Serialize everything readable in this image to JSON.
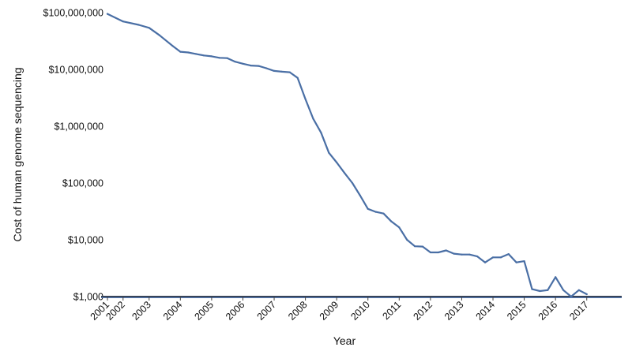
{
  "chart_data": {
    "type": "line",
    "xlabel": "Year",
    "ylabel": "Cost of human genome sequencing",
    "y_scale": "log",
    "xlim": [
      "2001-09",
      "2017-12"
    ],
    "ylim": [
      1000,
      100000000
    ],
    "x_ticks": [
      {
        "date": "2001-09",
        "label": "2001"
      },
      {
        "date": "2002-03",
        "label": "2002"
      },
      {
        "date": "2003-01",
        "label": "2003"
      },
      {
        "date": "2004-01",
        "label": "2004"
      },
      {
        "date": "2005-01",
        "label": "2005"
      },
      {
        "date": "2006-01",
        "label": "2006"
      },
      {
        "date": "2007-01",
        "label": "2007"
      },
      {
        "date": "2008-01",
        "label": "2008"
      },
      {
        "date": "2009-01",
        "label": "2009"
      },
      {
        "date": "2010-01",
        "label": "2010"
      },
      {
        "date": "2011-01",
        "label": "2011"
      },
      {
        "date": "2012-01",
        "label": "2012"
      },
      {
        "date": "2013-01",
        "label": "2013"
      },
      {
        "date": "2014-01",
        "label": "2014"
      },
      {
        "date": "2015-01",
        "label": "2015"
      },
      {
        "date": "2016-01",
        "label": "2016"
      },
      {
        "date": "2017-01",
        "label": "2017"
      }
    ],
    "y_ticks": [
      {
        "value": 100000000,
        "label": "$100,000,000"
      },
      {
        "value": 10000000,
        "label": "$10,000,000"
      },
      {
        "value": 1000000,
        "label": "$1,000,000"
      },
      {
        "value": 100000,
        "label": "$100,000"
      },
      {
        "value": 10000,
        "label": "$10,000"
      },
      {
        "value": 1000,
        "label": "$1,000"
      }
    ],
    "series": [
      {
        "color": "#4a6fa5",
        "points": [
          [
            "2001-09",
            95000000
          ],
          [
            "2002-03",
            70000000
          ],
          [
            "2002-09",
            61000000
          ],
          [
            "2003-01",
            54000000
          ],
          [
            "2003-05",
            40000000
          ],
          [
            "2003-10",
            26000000
          ],
          [
            "2004-01",
            20500000
          ],
          [
            "2004-04",
            19900000
          ],
          [
            "2004-07",
            18700000
          ],
          [
            "2004-10",
            17600000
          ],
          [
            "2005-01",
            17000000
          ],
          [
            "2005-04",
            16000000
          ],
          [
            "2005-07",
            15800000
          ],
          [
            "2005-10",
            13700000
          ],
          [
            "2006-01",
            12600000
          ],
          [
            "2006-04",
            11700000
          ],
          [
            "2006-07",
            11500000
          ],
          [
            "2006-10",
            10500000
          ],
          [
            "2007-01",
            9400000
          ],
          [
            "2007-04",
            9100000
          ],
          [
            "2007-07",
            8900000
          ],
          [
            "2007-10",
            7100000
          ],
          [
            "2008-01",
            3000000
          ],
          [
            "2008-04",
            1350000
          ],
          [
            "2008-07",
            770000
          ],
          [
            "2008-10",
            340000
          ],
          [
            "2009-01",
            230000
          ],
          [
            "2009-04",
            150000
          ],
          [
            "2009-07",
            100000
          ],
          [
            "2009-10",
            60000
          ],
          [
            "2010-01",
            35000
          ],
          [
            "2010-04",
            31000
          ],
          [
            "2010-07",
            29000
          ],
          [
            "2010-10",
            21000
          ],
          [
            "2011-01",
            16500
          ],
          [
            "2011-04",
            10000
          ],
          [
            "2011-07",
            7700
          ],
          [
            "2011-10",
            7600
          ],
          [
            "2012-01",
            6000
          ],
          [
            "2012-04",
            6000
          ],
          [
            "2012-07",
            6500
          ],
          [
            "2012-10",
            5700
          ],
          [
            "2013-01",
            5500
          ],
          [
            "2013-04",
            5500
          ],
          [
            "2013-07",
            5100
          ],
          [
            "2013-10",
            4000
          ],
          [
            "2014-01",
            4900
          ],
          [
            "2014-04",
            4900
          ],
          [
            "2014-07",
            5600
          ],
          [
            "2014-10",
            4000
          ],
          [
            "2015-01",
            4200
          ],
          [
            "2015-04",
            1350
          ],
          [
            "2015-07",
            1250
          ],
          [
            "2015-10",
            1300
          ],
          [
            "2016-01",
            2200
          ],
          [
            "2016-04",
            1300
          ],
          [
            "2016-07",
            1000
          ],
          [
            "2016-10",
            1300
          ],
          [
            "2017-01",
            1100
          ]
        ]
      }
    ]
  }
}
